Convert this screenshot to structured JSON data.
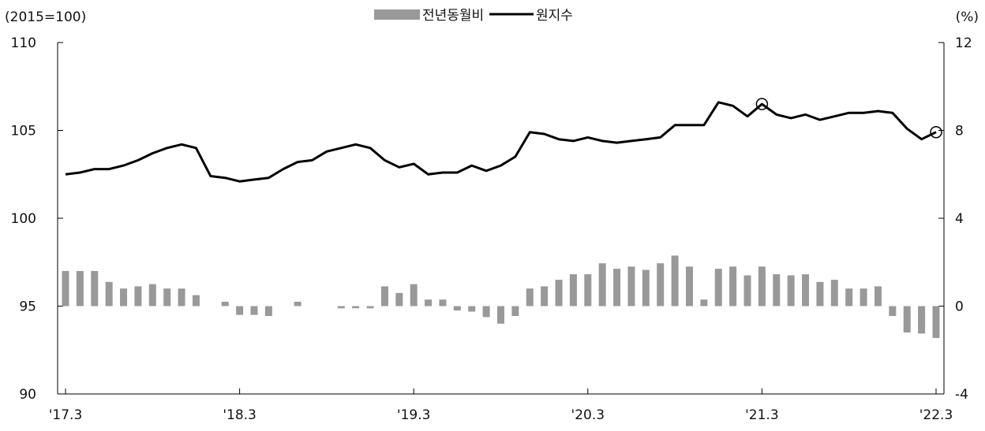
{
  "chart_data": {
    "type": "bar+line",
    "left_unit": "(2015=100)",
    "right_unit": "(%)",
    "legend": [
      "전년동월비",
      "원지수"
    ],
    "legend_placement": "top-center",
    "x_tick_labels": [
      "'17.3",
      "'18.3",
      "'19.3",
      "'20.3",
      "'21.3",
      "'22.3"
    ],
    "y_left": {
      "ylim": [
        90,
        110
      ],
      "ticks": [
        "90",
        "95",
        "100",
        "105",
        "110"
      ]
    },
    "y_right": {
      "ylim": [
        -4,
        12
      ],
      "ticks": [
        "-4",
        "0",
        "4",
        "8",
        "12"
      ]
    },
    "grid": false,
    "x": [
      "2017-03",
      "2017-04",
      "2017-05",
      "2017-06",
      "2017-07",
      "2017-08",
      "2017-09",
      "2017-10",
      "2017-11",
      "2017-12",
      "2018-01",
      "2018-02",
      "2018-03",
      "2018-04",
      "2018-05",
      "2018-06",
      "2018-07",
      "2018-08",
      "2018-09",
      "2018-10",
      "2018-11",
      "2018-12",
      "2019-01",
      "2019-02",
      "2019-03",
      "2019-04",
      "2019-05",
      "2019-06",
      "2019-07",
      "2019-08",
      "2019-09",
      "2019-10",
      "2019-11",
      "2019-12",
      "2020-01",
      "2020-02",
      "2020-03",
      "2020-04",
      "2020-05",
      "2020-06",
      "2020-07",
      "2020-08",
      "2020-09",
      "2020-10",
      "2020-11",
      "2020-12",
      "2021-01",
      "2021-02",
      "2021-03",
      "2021-04",
      "2021-05",
      "2021-06",
      "2021-07",
      "2021-08",
      "2021-09",
      "2021-10",
      "2021-11",
      "2021-12",
      "2022-01",
      "2022-02",
      "2022-03"
    ],
    "series": [
      {
        "name": "전년동월비",
        "type": "bar",
        "axis": "right",
        "color": "#999999",
        "values": [
          1.6,
          1.6,
          1.6,
          1.1,
          0.8,
          0.9,
          1.0,
          0.8,
          0.8,
          0.5,
          0.0,
          0.2,
          -0.4,
          -0.4,
          -0.45,
          0.0,
          0.2,
          0.0,
          0.0,
          -0.1,
          -0.1,
          -0.1,
          0.9,
          0.6,
          1.0,
          0.3,
          0.3,
          -0.2,
          -0.25,
          -0.5,
          -0.8,
          -0.45,
          0.8,
          0.9,
          1.2,
          1.45,
          1.45,
          1.95,
          1.7,
          1.8,
          1.65,
          1.95,
          2.3,
          1.8,
          0.3,
          1.7,
          1.8,
          1.4,
          1.8,
          1.45,
          1.4,
          1.45,
          1.1,
          1.2,
          0.8,
          0.8,
          0.9,
          -0.45,
          -1.2,
          -1.25,
          -1.45
        ]
      },
      {
        "name": "원지수",
        "type": "line",
        "axis": "left",
        "color": "#000000",
        "values": [
          102.5,
          102.6,
          102.8,
          102.8,
          103.0,
          103.3,
          103.7,
          104.0,
          104.2,
          104.0,
          102.4,
          102.3,
          102.1,
          102.2,
          102.3,
          102.8,
          103.2,
          103.3,
          103.8,
          104.0,
          104.2,
          104.0,
          103.3,
          102.9,
          103.1,
          102.5,
          102.6,
          102.6,
          103.0,
          102.7,
          103.0,
          103.5,
          104.9,
          104.8,
          104.5,
          104.4,
          104.6,
          104.4,
          104.3,
          104.4,
          104.5,
          104.6,
          105.3,
          105.3,
          105.3,
          106.6,
          106.4,
          105.8,
          106.5,
          105.9,
          105.7,
          105.9,
          105.6,
          105.8,
          106.0,
          106.0,
          106.1,
          106.0,
          105.1,
          104.5,
          104.9
        ]
      }
    ],
    "markers": [
      {
        "series": "원지수",
        "x": "2021-03",
        "value": 106.5
      },
      {
        "series": "원지수",
        "x": "2022-03",
        "value": 104.9
      }
    ]
  }
}
